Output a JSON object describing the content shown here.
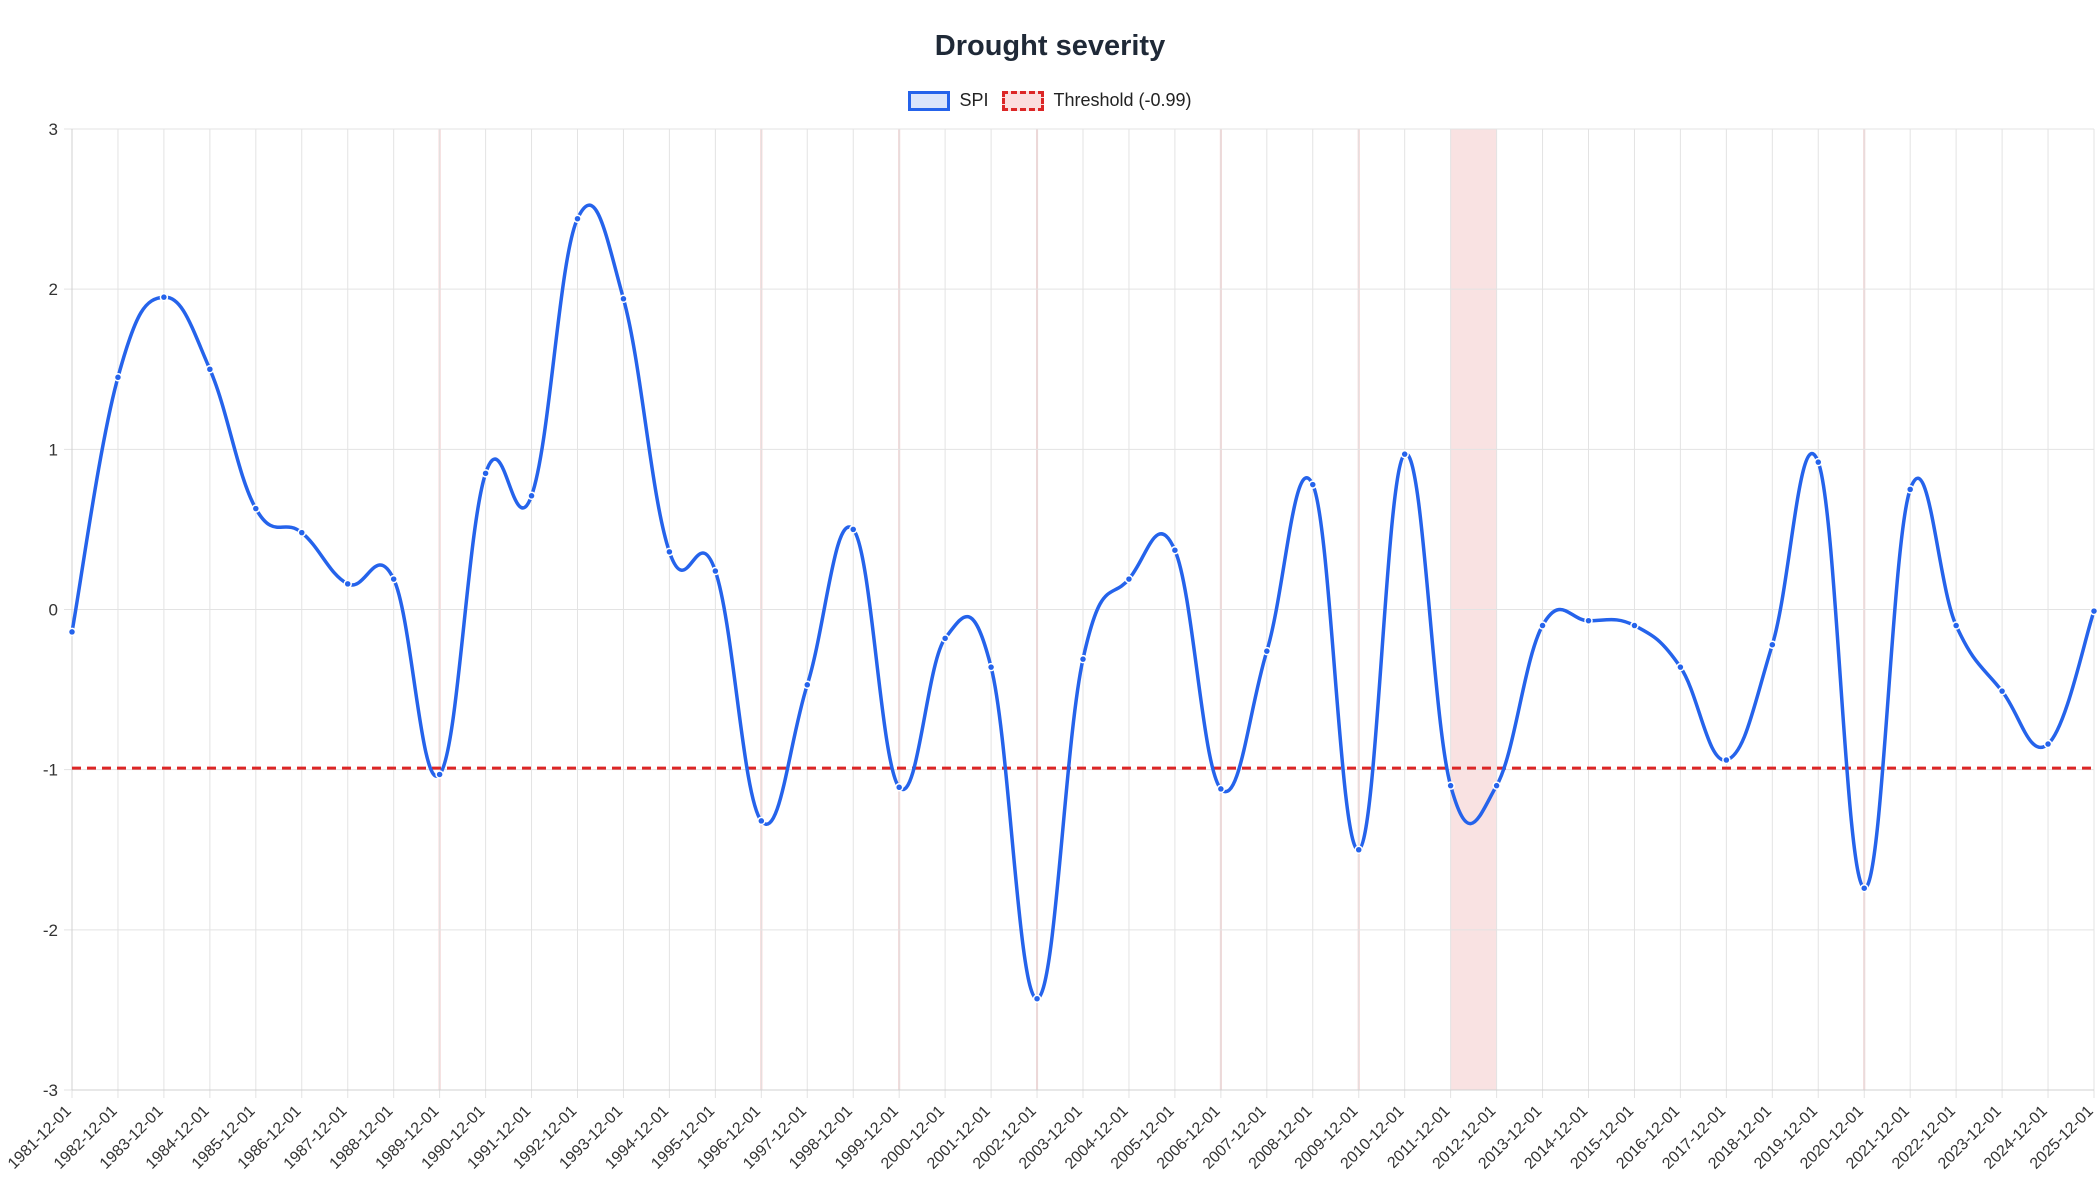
{
  "chart_data": {
    "type": "line",
    "title": "Drought severity",
    "x": [
      "1981-12-01",
      "1982-12-01",
      "1983-12-01",
      "1984-12-01",
      "1985-12-01",
      "1986-12-01",
      "1987-12-01",
      "1988-12-01",
      "1989-12-01",
      "1990-12-01",
      "1991-12-01",
      "1992-12-01",
      "1993-12-01",
      "1994-12-01",
      "1995-12-01",
      "1996-12-01",
      "1997-12-01",
      "1998-12-01",
      "1999-12-01",
      "2000-12-01",
      "2001-12-01",
      "2002-12-01",
      "2003-12-01",
      "2004-12-01",
      "2005-12-01",
      "2006-12-01",
      "2007-12-01",
      "2008-12-01",
      "2009-12-01",
      "2010-12-01",
      "2011-12-01",
      "2012-12-01",
      "2013-12-01",
      "2014-12-01",
      "2015-12-01",
      "2016-12-01",
      "2017-12-01",
      "2018-12-01",
      "2019-12-01",
      "2020-12-01",
      "2021-12-01",
      "2022-12-01",
      "2023-12-01",
      "2024-12-01",
      "2025-12-01"
    ],
    "series": [
      {
        "name": "SPI",
        "color": "#2563eb",
        "values": [
          -0.14,
          1.45,
          1.95,
          1.5,
          0.63,
          0.48,
          0.16,
          0.19,
          -1.03,
          0.85,
          0.71,
          2.44,
          1.94,
          0.36,
          0.24,
          -1.32,
          -0.47,
          0.5,
          -1.11,
          -0.18,
          -0.36,
          -2.43,
          -0.31,
          0.19,
          0.37,
          -1.12,
          -0.26,
          0.78,
          -1.5,
          0.97,
          -1.1,
          -1.1,
          -0.1,
          -0.07,
          -0.1,
          -0.36,
          -0.94,
          -0.22,
          0.92,
          -1.74,
          0.75,
          -0.1,
          -0.51,
          -0.84,
          -0.01
        ]
      },
      {
        "name": "Threshold (-0.99)",
        "color": "#dc2626",
        "value": -0.99
      }
    ],
    "drought_highlight_color": "#f4c6c6",
    "ylim": [
      -3,
      3
    ],
    "y_ticks": [
      "3",
      "2",
      "1",
      "0",
      "-1",
      "-2",
      "-3"
    ],
    "grid": true,
    "legend_position": "top-center"
  }
}
